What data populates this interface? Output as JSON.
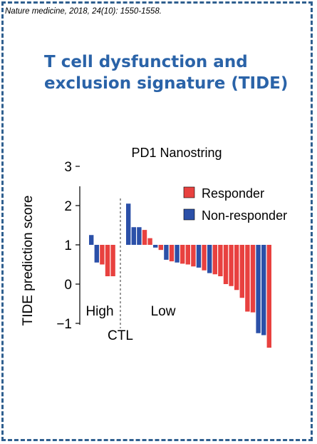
{
  "citation": "Nature medicine, 2018, 24(10): 1550-1558.",
  "slide_title": "T cell dysfunction and exclusion signature (TIDE)",
  "colors": {
    "responder": "#e8413f",
    "non_responder": "#2b50a8",
    "title": "#2a63a8",
    "border": "#2f5f8f"
  },
  "chart_data": {
    "type": "bar",
    "title": "PD1 Nanostring",
    "ylabel": "TIDE prediction score",
    "xlabel": "CTL",
    "ylim": [
      -1.5,
      3
    ],
    "yticks": [
      "3",
      "2",
      "1",
      "0",
      "−1"
    ],
    "group_labels": [
      "High",
      "Low"
    ],
    "legend": [
      {
        "name": "Responder",
        "color": "#e8413f"
      },
      {
        "name": "Non-responder",
        "color": "#2b50a8"
      }
    ],
    "legend_position": "top-right",
    "groups": [
      {
        "name": "High",
        "values": [
          1.25,
          0.55,
          0.5,
          0.2,
          0.2
        ],
        "classes": [
          "Non-responder",
          "Non-responder",
          "Responder",
          "Responder",
          "Responder"
        ]
      },
      {
        "name": "Low",
        "values": [
          2.05,
          1.45,
          1.45,
          1.38,
          1.17,
          0.93,
          0.87,
          0.62,
          0.58,
          0.55,
          0.52,
          0.5,
          0.45,
          0.42,
          0.35,
          0.28,
          0.25,
          0.2,
          0.0,
          -0.05,
          -0.15,
          -0.35,
          -0.7,
          -0.72,
          -1.25,
          -1.3,
          -1.62
        ],
        "classes": [
          "Non-responder",
          "Non-responder",
          "Non-responder",
          "Responder",
          "Responder",
          "Non-responder",
          "Responder",
          "Non-responder",
          "Responder",
          "Non-responder",
          "Responder",
          "Responder",
          "Responder",
          "Non-responder",
          "Responder",
          "Non-responder",
          "Responder",
          "Responder",
          "Responder",
          "Responder",
          "Responder",
          "Responder",
          "Responder",
          "Responder",
          "Non-responder",
          "Non-responder",
          "Responder"
        ]
      }
    ]
  }
}
